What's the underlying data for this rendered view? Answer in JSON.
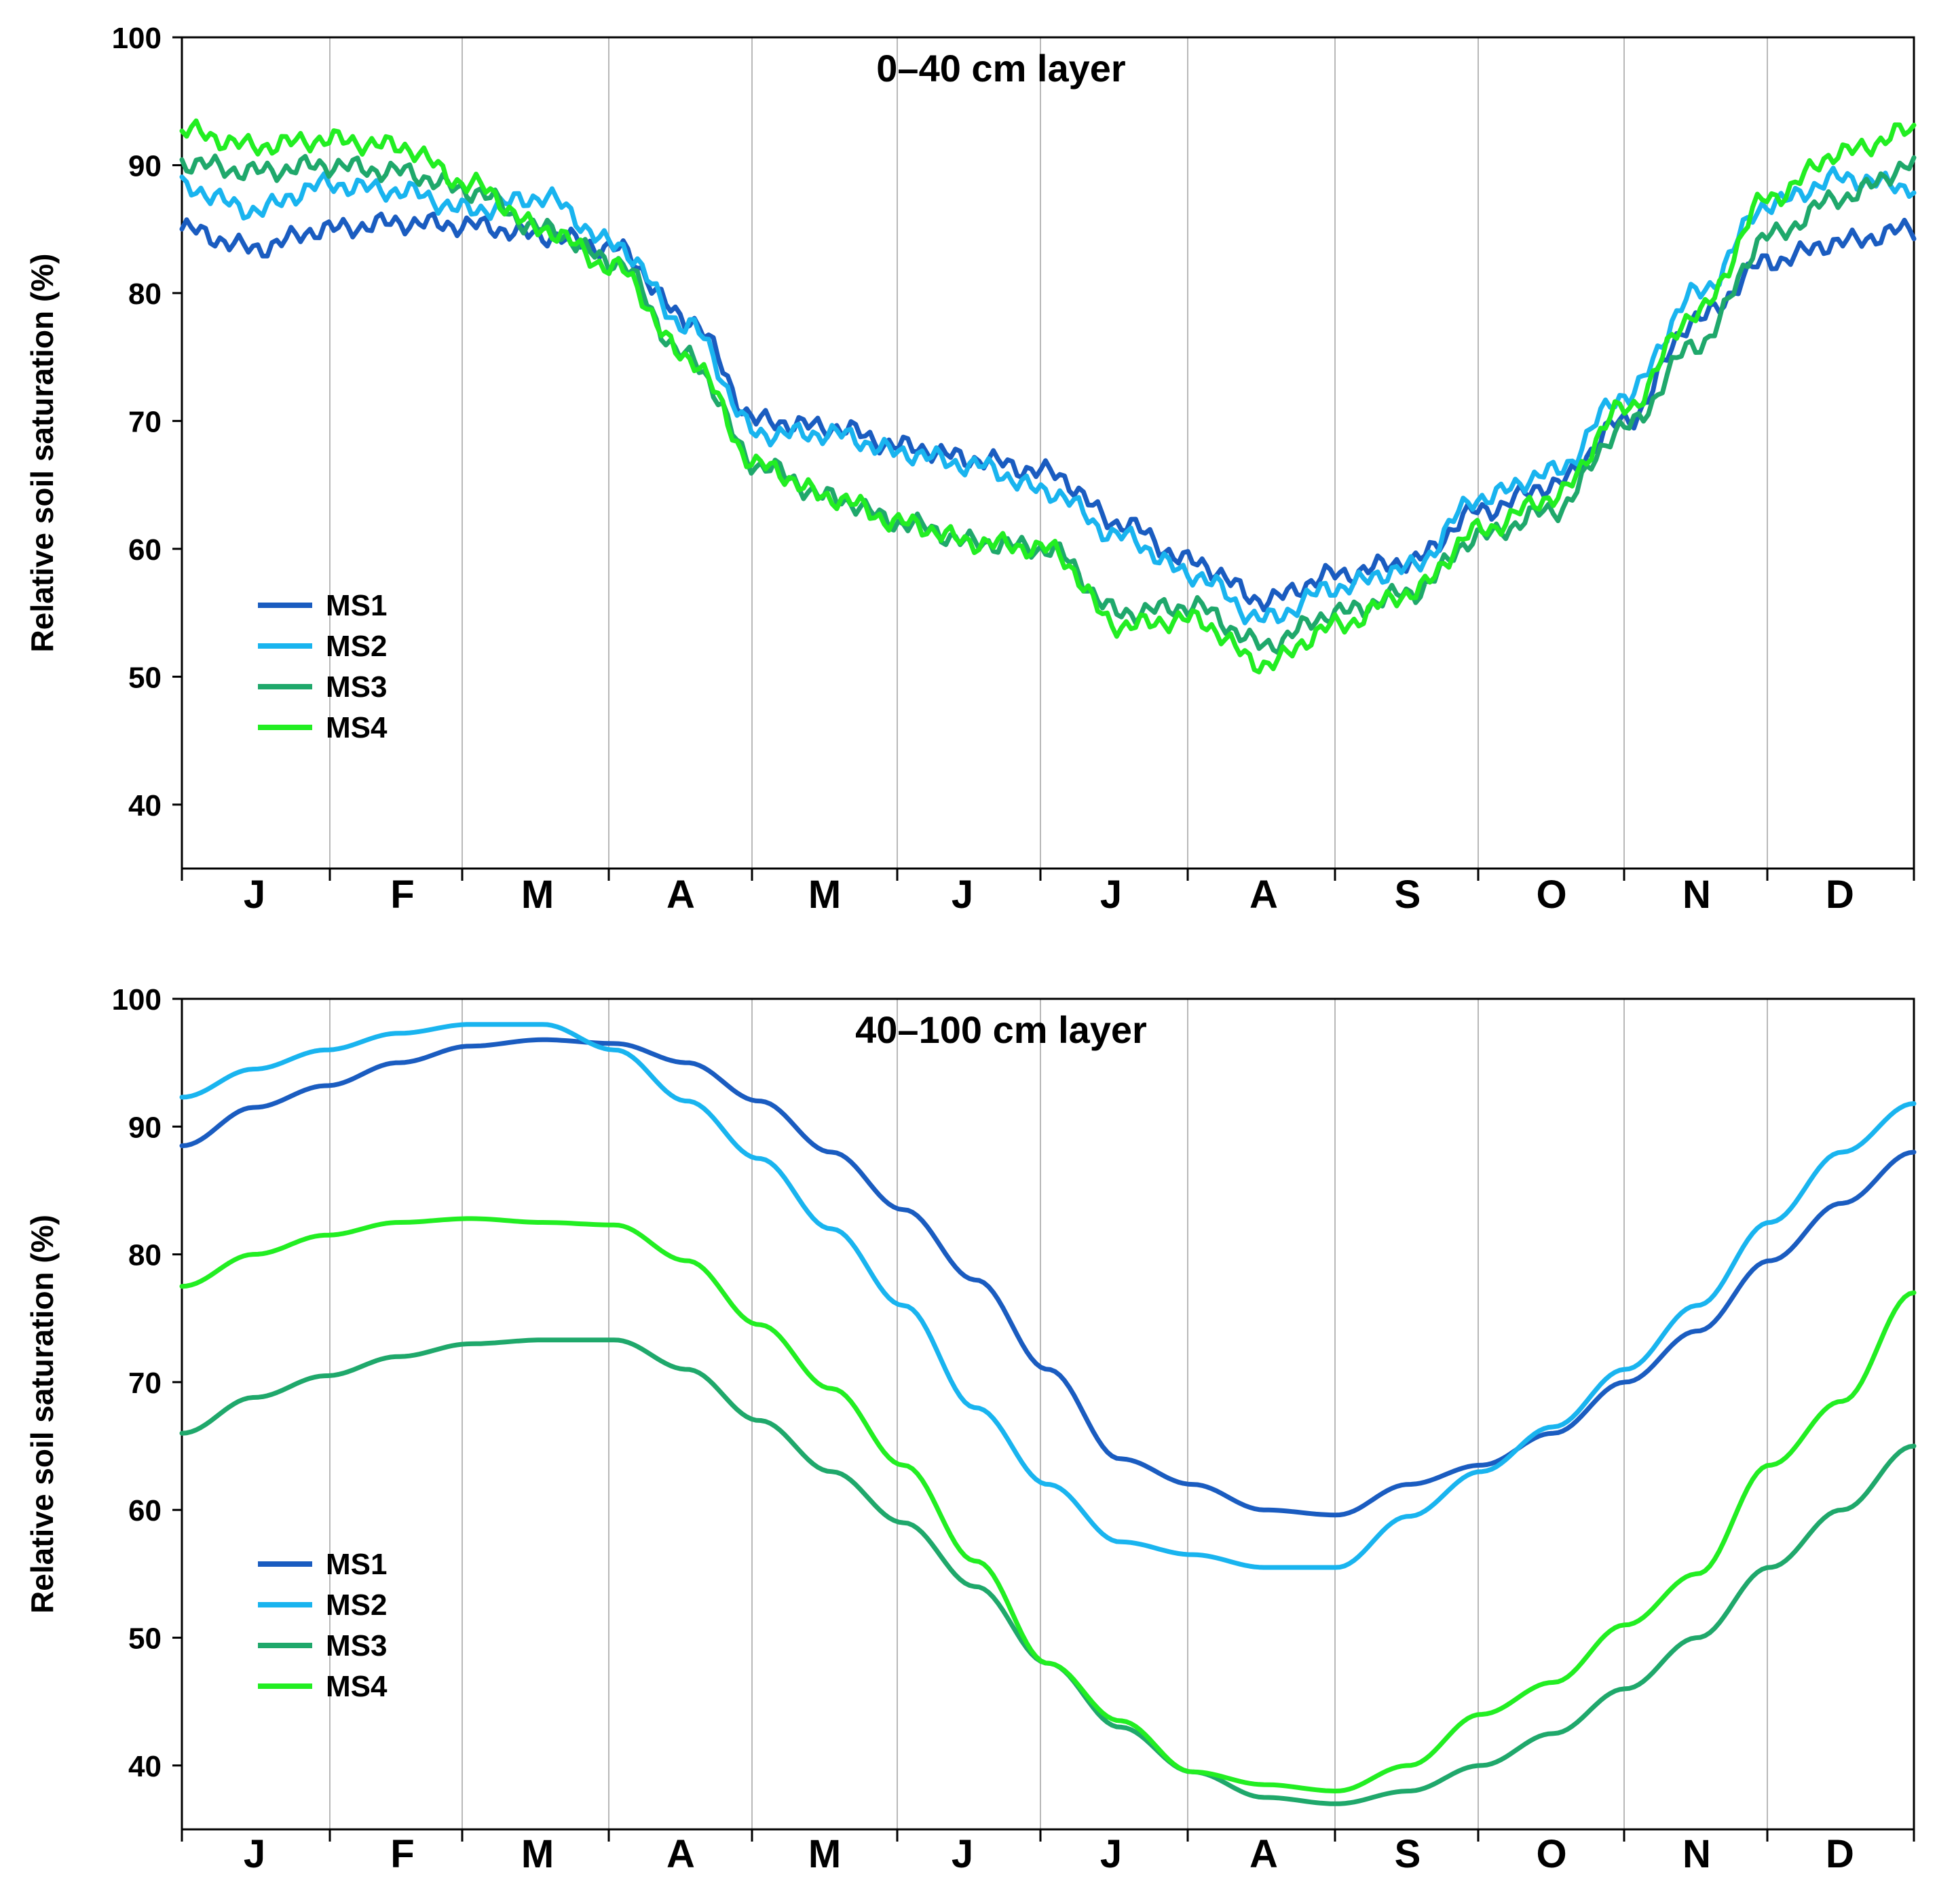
{
  "chart_data": [
    {
      "type": "line",
      "title": "0–40 cm layer",
      "xlabel": "",
      "ylabel": "Relative soil saturation (%)",
      "ylim": [
        35,
        100
      ],
      "yticks": [
        40,
        50,
        60,
        70,
        80,
        90,
        100
      ],
      "xlim": [
        0,
        12
      ],
      "month_labels": [
        "J",
        "F",
        "M",
        "A",
        "M",
        "J",
        "J",
        "A",
        "S",
        "O",
        "N",
        "D"
      ],
      "grid": "vertical month boundaries",
      "legend_position": "lower-left",
      "x": [
        0,
        0.5,
        1,
        1.5,
        2,
        2.5,
        3,
        3.5,
        4,
        4.5,
        5,
        5.5,
        6,
        6.5,
        7,
        7.5,
        8,
        8.5,
        9,
        9.5,
        10,
        10.5,
        11,
        11.5,
        12
      ],
      "series": [
        {
          "name": "MS1",
          "color": "#1a5cc0",
          "values": [
            85,
            83.5,
            85,
            85.5,
            85.3,
            84.5,
            83.5,
            78,
            70,
            69.5,
            68,
            67,
            66,
            62,
            59,
            56,
            58,
            59,
            63,
            65,
            70,
            78,
            82.5,
            84,
            85
          ]
        },
        {
          "name": "MS2",
          "color": "#19b4ef",
          "values": [
            88.3,
            86.5,
            88.5,
            88,
            86.5,
            87.5,
            83.8,
            77.5,
            69,
            69,
            67.5,
            66.5,
            64.5,
            61,
            58,
            54.5,
            57,
            58.5,
            64,
            66,
            72,
            80,
            87,
            89,
            88.3
          ]
        },
        {
          "name": "MS3",
          "color": "#1fa86b",
          "values": [
            90.2,
            89.5,
            90,
            89.5,
            88,
            85,
            82.5,
            75,
            66.5,
            64,
            62,
            60.5,
            60,
            55,
            55.5,
            52.5,
            55,
            56.5,
            61,
            63,
            69.5,
            76,
            84.5,
            87.5,
            90
          ]
        },
        {
          "name": "MS4",
          "color": "#22ee22",
          "values": [
            92.7,
            91.5,
            92,
            91.5,
            88.5,
            85,
            82,
            75,
            66.5,
            64,
            62,
            60.5,
            60,
            54,
            54.5,
            51,
            54,
            56.5,
            61.5,
            64,
            71,
            78.5,
            87.5,
            91,
            92.7
          ]
        }
      ]
    },
    {
      "type": "line",
      "title": "40–100 cm layer",
      "xlabel": "",
      "ylabel": "Relative soil saturation (%)",
      "ylim": [
        35,
        100
      ],
      "yticks": [
        40,
        50,
        60,
        70,
        80,
        90,
        100
      ],
      "xlim": [
        0,
        12
      ],
      "month_labels": [
        "J",
        "F",
        "M",
        "A",
        "M",
        "J",
        "J",
        "A",
        "S",
        "O",
        "N",
        "D"
      ],
      "grid": "vertical month boundaries",
      "legend_position": "lower-left",
      "x": [
        0,
        0.5,
        1,
        1.5,
        2,
        2.5,
        3,
        3.5,
        4,
        4.5,
        5,
        5.5,
        6,
        6.5,
        7,
        7.5,
        8,
        8.5,
        9,
        9.5,
        10,
        10.5,
        11,
        11.5,
        12
      ],
      "series": [
        {
          "name": "MS1",
          "color": "#1a5cc0",
          "values": [
            88.5,
            91.5,
            93.2,
            95,
            96.3,
            96.8,
            96.5,
            95,
            92,
            88,
            83.5,
            78,
            71,
            64,
            62,
            60,
            59.6,
            62,
            63.5,
            66,
            70,
            74,
            79.5,
            84,
            88
          ]
        },
        {
          "name": "MS2",
          "color": "#19b4ef",
          "values": [
            92.3,
            94.5,
            96,
            97.3,
            98,
            98,
            96,
            92,
            87.5,
            82,
            76,
            68,
            62,
            57.5,
            56.5,
            55.5,
            55.5,
            59.5,
            63,
            66.5,
            71,
            76,
            82.5,
            88,
            91.8
          ]
        },
        {
          "name": "MS3",
          "color": "#1fa86b",
          "values": [
            66,
            68.8,
            70.5,
            72,
            73,
            73.3,
            73.3,
            71,
            67,
            63,
            59,
            54,
            48,
            43,
            39.5,
            37.5,
            37,
            38,
            40,
            42.5,
            46,
            50,
            55.5,
            60,
            65
          ]
        },
        {
          "name": "MS4",
          "color": "#22ee22",
          "values": [
            77.5,
            80,
            81.5,
            82.5,
            82.8,
            82.5,
            82.3,
            79.5,
            74.5,
            69.5,
            63.5,
            56,
            48,
            43.5,
            39.5,
            38.5,
            38,
            40,
            44,
            46.5,
            51,
            55,
            63.5,
            68.5,
            77
          ]
        }
      ]
    }
  ]
}
